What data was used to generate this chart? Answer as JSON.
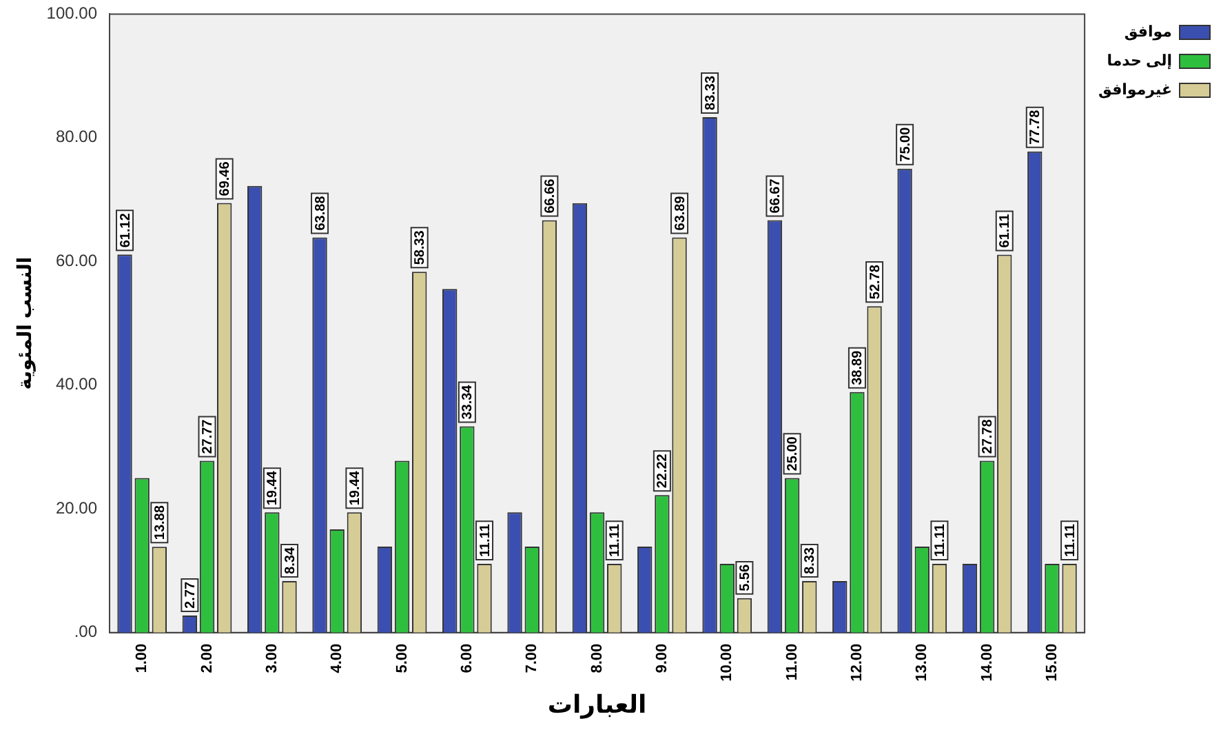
{
  "chart_data": {
    "type": "bar",
    "xlabel": "العبارات",
    "ylabel": "النسب المئوية",
    "categories": [
      "1.00",
      "2.00",
      "3.00",
      "4.00",
      "5.00",
      "6.00",
      "7.00",
      "8.00",
      "9.00",
      "10.00",
      "11.00",
      "12.00",
      "13.00",
      "14.00",
      "15.00"
    ],
    "series": [
      {
        "name": "موافق",
        "color": "#3a4fb0",
        "values": [
          61.12,
          2.77,
          72.22,
          63.88,
          13.89,
          55.55,
          19.44,
          69.44,
          13.89,
          83.33,
          66.67,
          8.33,
          75.0,
          11.11,
          77.78
        ],
        "value_labels": [
          "61.12",
          "2.77",
          null,
          "63.88",
          null,
          null,
          null,
          null,
          null,
          "83.33",
          "66.67",
          null,
          "75.00",
          null,
          "77.78"
        ]
      },
      {
        "name": "إلى حدما",
        "color": "#2fbf3f",
        "values": [
          25.0,
          27.77,
          19.44,
          16.68,
          27.78,
          33.34,
          13.89,
          19.44,
          22.22,
          11.11,
          25.0,
          38.89,
          13.89,
          27.78,
          11.11
        ],
        "value_labels": [
          null,
          "27.77",
          "19.44",
          null,
          null,
          "33.34",
          null,
          null,
          "22.22",
          null,
          "25.00",
          "38.89",
          null,
          "27.78",
          null
        ]
      },
      {
        "name": "غيرموافق",
        "color": "#d6cc96",
        "values": [
          13.88,
          69.46,
          8.34,
          19.44,
          58.33,
          11.11,
          66.66,
          11.11,
          63.89,
          5.56,
          8.33,
          52.78,
          11.11,
          61.11,
          11.11
        ],
        "value_labels": [
          "13.88",
          "69.46",
          "8.34",
          "19.44",
          "58.33",
          "11.11",
          "66.66",
          "11.11",
          "63.89",
          "5.56",
          "8.33",
          "52.78",
          "11.11",
          "61.11",
          "11.11"
        ]
      }
    ],
    "ylim": [
      0,
      100
    ],
    "yticks": [
      {
        "value": 0,
        "label": ".00"
      },
      {
        "value": 20,
        "label": "20.00"
      },
      {
        "value": 40,
        "label": "40.00"
      },
      {
        "value": 60,
        "label": "60.00"
      },
      {
        "value": 80,
        "label": "80.00"
      },
      {
        "value": 100,
        "label": "100.00"
      }
    ],
    "grid": false,
    "legend": "top right"
  }
}
